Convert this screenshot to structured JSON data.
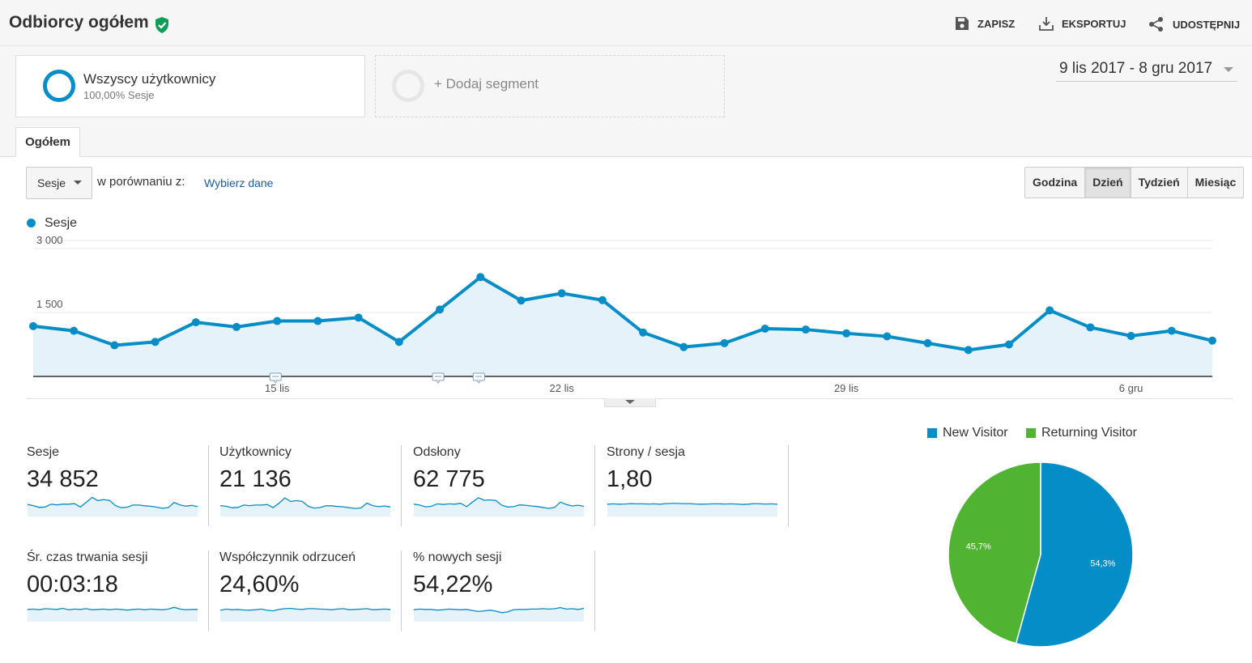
{
  "header": {
    "title": "Odbiorcy ogółem",
    "save": "ZAPISZ",
    "export": "EKSPORTUJ",
    "share": "UDOSTĘPNIJ"
  },
  "segments": {
    "active_name": "Wszyscy użytkownicy",
    "active_sub": "100,00% Sesje",
    "add_label": "+ Dodaj segment"
  },
  "date_range": "9 lis 2017 - 8 gru 2017",
  "tabs": {
    "overview": "Ogółem"
  },
  "controls": {
    "metric": "Sesje",
    "compare_label": "w porównaniu z:",
    "compare_link": "Wybierz dane",
    "granularity": [
      "Godzina",
      "Dzień",
      "Tydzień",
      "Miesiąc"
    ],
    "active_granularity": "Dzień"
  },
  "colors": {
    "accent": "#058dc7",
    "returning": "#50b432",
    "link": "#1a5c9c"
  },
  "chart_data": [
    {
      "type": "area",
      "series": [
        {
          "name": "Sesje",
          "values": [
            1180,
            1070,
            730,
            810,
            1270,
            1160,
            1300,
            1300,
            1380,
            810,
            1570,
            2330,
            1780,
            1950,
            1790,
            1030,
            690,
            780,
            1120,
            1100,
            1010,
            940,
            780,
            620,
            750,
            1550,
            1150,
            950,
            1070,
            840
          ]
        }
      ],
      "x_tick_labels": [
        {
          "index": 6,
          "label": "15 lis"
        },
        {
          "index": 13,
          "label": "22 lis"
        },
        {
          "index": 20,
          "label": "29 lis"
        },
        {
          "index": 27,
          "label": "6 gru"
        }
      ],
      "y_tick_labels": [
        "3 000",
        "1 500"
      ],
      "y_ticks": [
        3000,
        1500
      ],
      "ylim": [
        0,
        3000
      ],
      "annotation_markers": [
        6,
        10,
        11
      ],
      "grid": true
    },
    {
      "type": "pie",
      "series": [
        {
          "name": "New Visitor",
          "value": 54.3,
          "label": "54,3%",
          "color": "#058dc7"
        },
        {
          "name": "Returning Visitor",
          "value": 45.7,
          "label": "45,7%",
          "color": "#50b432"
        }
      ],
      "legend": "top"
    }
  ],
  "scorecards": [
    {
      "label": "Sesje",
      "value": "34 852",
      "spark": [
        58,
        52,
        42,
        44,
        60,
        56,
        60,
        60,
        63,
        44,
        70,
        98,
        80,
        86,
        81,
        52,
        40,
        43,
        55,
        55,
        51,
        48,
        43,
        37,
        41,
        70,
        56,
        49,
        53,
        46
      ]
    },
    {
      "label": "Użytkownicy",
      "value": "21 136",
      "spark": [
        52,
        48,
        40,
        42,
        55,
        52,
        55,
        55,
        58,
        41,
        65,
        95,
        75,
        80,
        75,
        48,
        38,
        41,
        51,
        51,
        47,
        45,
        40,
        36,
        39,
        66,
        52,
        46,
        50,
        44
      ]
    },
    {
      "label": "Odsłony",
      "value": "62 775",
      "spark": [
        60,
        55,
        45,
        48,
        62,
        58,
        62,
        60,
        65,
        46,
        72,
        96,
        82,
        84,
        80,
        54,
        44,
        46,
        56,
        54,
        50,
        47,
        42,
        36,
        42,
        72,
        58,
        50,
        54,
        48
      ]
    },
    {
      "label": "Strony / sesja",
      "value": "1,80",
      "spark": [
        60,
        62,
        60,
        61,
        63,
        62,
        62,
        61,
        62,
        60,
        63,
        64,
        64,
        63,
        63,
        61,
        60,
        61,
        62,
        62,
        61,
        62,
        61,
        58,
        60,
        63,
        62,
        61,
        62,
        60
      ]
    },
    {
      "label": "Śr. czas trwania sesji",
      "value": "00:03:18",
      "spark": [
        60,
        62,
        58,
        64,
        62,
        60,
        66,
        58,
        62,
        60,
        64,
        58,
        60,
        62,
        58,
        62,
        60,
        56,
        60,
        62,
        58,
        62,
        60,
        58,
        62,
        72,
        62,
        58,
        60,
        60
      ]
    },
    {
      "label": "Współczynnik odrzuceń",
      "value": "24,60%",
      "spark": [
        55,
        62,
        58,
        60,
        57,
        56,
        58,
        62,
        55,
        52,
        60,
        64,
        66,
        62,
        60,
        64,
        64,
        62,
        61,
        58,
        62,
        64,
        58,
        60,
        62,
        64,
        58,
        60,
        62,
        60
      ]
    },
    {
      "label": "% nowych sesji",
      "value": "54,22%",
      "spark": [
        58,
        62,
        60,
        60,
        56,
        58,
        62,
        60,
        58,
        60,
        54,
        48,
        52,
        56,
        50,
        42,
        46,
        58,
        60,
        60,
        62,
        62,
        64,
        62,
        64,
        70,
        62,
        64,
        60,
        66
      ]
    }
  ]
}
